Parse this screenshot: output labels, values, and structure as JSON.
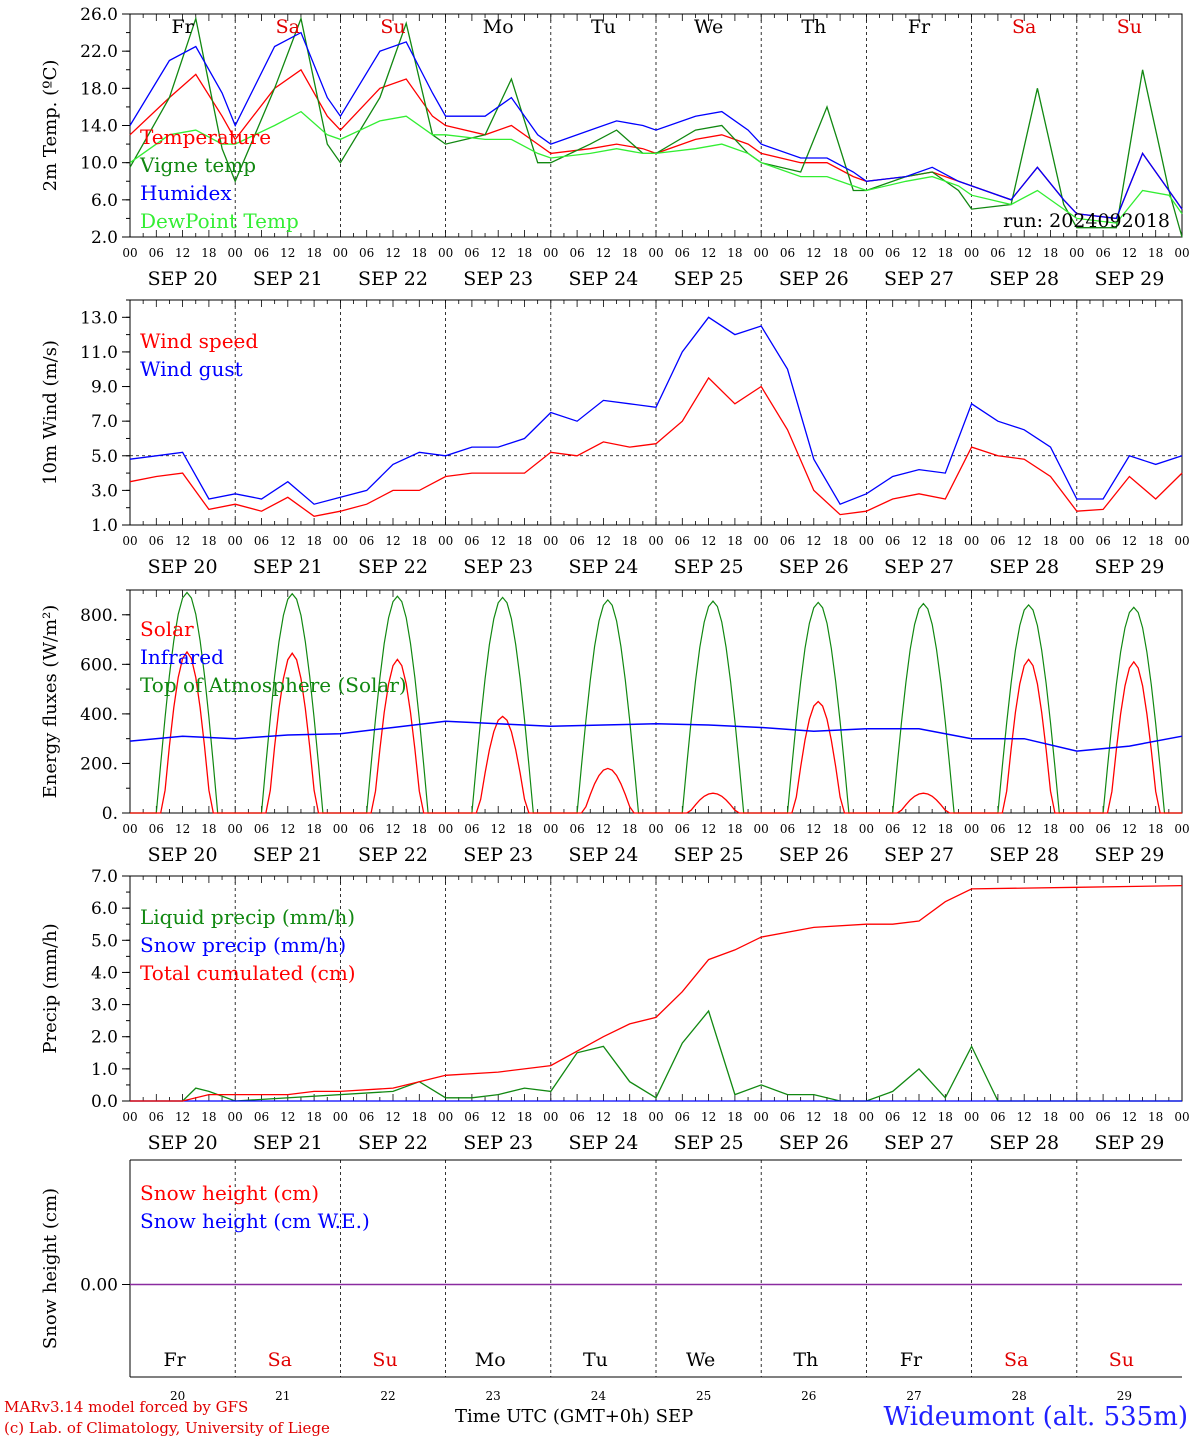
{
  "station": "Wideumont (alt. 535m)",
  "run_label": "run: 2024092018",
  "credits": [
    "MARv3.14 model forced by GFS",
    "(c) Lab. of Climatology, University of Liege"
  ],
  "xaxis_title": "Time UTC (GMT+0h)",
  "month_label": "SEP",
  "day_numbers": [
    "20",
    "21",
    "22",
    "23",
    "24",
    "25",
    "26",
    "27",
    "28",
    "29"
  ],
  "date_labels": [
    "SEP 20",
    "SEP 21",
    "SEP 22",
    "SEP 23",
    "SEP 24",
    "SEP 25",
    "SEP 26",
    "SEP 27",
    "SEP 28",
    "SEP 29"
  ],
  "hour_ticks": [
    "00",
    "06",
    "12",
    "18"
  ],
  "weekdays": [
    "Fr",
    "Sa",
    "Su",
    "Mo",
    "Tu",
    "We",
    "Th",
    "Fr",
    "Sa",
    "Su"
  ],
  "weekend_color": "#e00000",
  "chart_data": [
    {
      "type": "line",
      "ylabel": "2m Temp. (ºC)",
      "ylim": [
        2.0,
        26.0
      ],
      "yticks": [
        "2.0",
        "6.0",
        "10.0",
        "14.0",
        "18.0",
        "22.0",
        "26.0"
      ],
      "x_unit": "hours since SEP 20 00 UTC",
      "x": [
        0,
        9,
        15,
        21,
        24,
        33,
        39,
        45,
        48,
        57,
        63,
        69,
        72,
        81,
        87,
        93,
        96,
        105,
        111,
        117,
        120,
        129,
        135,
        141,
        144,
        153,
        159,
        165,
        168,
        177,
        183,
        189,
        192,
        201,
        207,
        213,
        216,
        225,
        231,
        237,
        240
      ],
      "series": [
        {
          "name": "Temperature",
          "color": "#ff0000",
          "values": [
            13.0,
            17.0,
            19.5,
            15.0,
            12.5,
            18.0,
            20.0,
            15.0,
            13.5,
            18.0,
            19.0,
            15.0,
            14.0,
            13.0,
            14.0,
            12.0,
            11.0,
            11.5,
            12.0,
            11.5,
            11.0,
            12.5,
            13.0,
            12.0,
            11.0,
            10.0,
            10.0,
            8.5,
            8.0,
            8.5,
            9.0,
            8.0,
            7.5,
            6.0,
            9.5,
            6.0,
            4.5,
            4.0,
            11.0,
            7.0,
            5.0
          ]
        },
        {
          "name": "Vigne temp",
          "color": "#118811",
          "values": [
            9.5,
            17.0,
            25.5,
            11.5,
            8.0,
            18.0,
            25.5,
            12.0,
            10.0,
            17.0,
            25.0,
            13.0,
            12.0,
            13.0,
            19.0,
            10.0,
            10.0,
            12.0,
            13.5,
            11.0,
            11.0,
            13.5,
            14.0,
            11.0,
            10.0,
            9.0,
            16.0,
            7.0,
            7.0,
            8.5,
            9.0,
            7.0,
            5.0,
            5.5,
            18.0,
            5.5,
            3.0,
            3.0,
            20.0,
            7.0,
            2.0
          ]
        },
        {
          "name": "Humidex",
          "color": "#0000ff",
          "values": [
            14.0,
            21.0,
            22.5,
            17.5,
            14.0,
            22.5,
            24.0,
            17.0,
            15.0,
            22.0,
            23.0,
            17.5,
            15.0,
            15.0,
            17.0,
            13.0,
            12.0,
            13.5,
            14.5,
            14.0,
            13.5,
            15.0,
            15.5,
            13.5,
            12.0,
            10.5,
            10.5,
            9.0,
            8.0,
            8.5,
            9.5,
            8.0,
            7.5,
            6.0,
            9.5,
            6.0,
            4.5,
            4.0,
            11.0,
            7.0,
            5.0
          ]
        },
        {
          "name": "DewPoint Temp",
          "color": "#33ee33",
          "values": [
            10.0,
            13.0,
            13.5,
            12.0,
            12.0,
            14.0,
            15.5,
            13.0,
            12.5,
            14.5,
            15.0,
            13.0,
            13.0,
            12.5,
            12.5,
            11.0,
            10.5,
            11.0,
            11.5,
            11.0,
            11.0,
            11.5,
            12.0,
            11.0,
            10.0,
            8.5,
            8.5,
            7.5,
            7.0,
            8.0,
            8.5,
            7.5,
            6.5,
            5.5,
            7.0,
            5.0,
            4.0,
            3.5,
            7.0,
            6.5,
            4.5
          ]
        }
      ]
    },
    {
      "type": "line",
      "ylabel": "10m Wind (m/s)",
      "ylim": [
        1.0,
        14.0
      ],
      "yticks": [
        "1.0",
        "3.0",
        "5.0",
        "7.0",
        "9.0",
        "11.0",
        "13.0"
      ],
      "reference_line": 5.0,
      "x": [
        0,
        6,
        12,
        18,
        24,
        30,
        36,
        42,
        48,
        54,
        60,
        66,
        72,
        78,
        84,
        90,
        96,
        102,
        108,
        114,
        120,
        126,
        132,
        138,
        144,
        150,
        156,
        162,
        168,
        174,
        180,
        186,
        192,
        198,
        204,
        210,
        216,
        222,
        228,
        234,
        240
      ],
      "series": [
        {
          "name": "Wind speed",
          "color": "#ff0000",
          "values": [
            3.5,
            3.8,
            4.0,
            1.9,
            2.2,
            1.8,
            2.6,
            1.5,
            1.8,
            2.2,
            3.0,
            3.0,
            3.8,
            4.0,
            4.0,
            4.0,
            5.2,
            5.0,
            5.8,
            5.5,
            5.7,
            7.0,
            9.5,
            8.0,
            9.0,
            6.5,
            3.0,
            1.6,
            1.8,
            2.5,
            2.8,
            2.5,
            5.5,
            5.0,
            4.8,
            3.8,
            1.8,
            1.9,
            3.8,
            2.5,
            4.0
          ]
        },
        {
          "name": "Wind gust",
          "color": "#0000ff",
          "values": [
            4.8,
            5.0,
            5.2,
            2.5,
            2.8,
            2.5,
            3.5,
            2.2,
            2.6,
            3.0,
            4.5,
            5.2,
            5.0,
            5.5,
            5.5,
            6.0,
            7.5,
            7.0,
            8.2,
            8.0,
            7.8,
            11.0,
            13.0,
            12.0,
            12.5,
            10.0,
            4.8,
            2.2,
            2.8,
            3.8,
            4.2,
            4.0,
            8.0,
            7.0,
            6.5,
            5.5,
            2.5,
            2.5,
            5.0,
            4.5,
            5.0
          ]
        }
      ]
    },
    {
      "type": "line",
      "ylabel": "Energy fluxes (W/m²)",
      "ylim": [
        0,
        900
      ],
      "yticks": [
        "0.",
        "200.",
        "400.",
        "600.",
        "800."
      ],
      "series": [
        {
          "name": "Solar",
          "color": "#ff0000",
          "daily_peak": [
            650,
            645,
            620,
            390,
            180,
            80,
            450,
            80,
            620,
            610
          ]
        },
        {
          "name": "Infrared",
          "color": "#0000ff",
          "x": [
            0,
            12,
            24,
            36,
            48,
            60,
            72,
            84,
            96,
            108,
            120,
            132,
            144,
            156,
            168,
            180,
            192,
            204,
            216,
            228,
            240
          ],
          "values": [
            290,
            310,
            300,
            315,
            320,
            345,
            370,
            360,
            350,
            355,
            360,
            355,
            345,
            330,
            340,
            340,
            300,
            300,
            250,
            270,
            310
          ]
        },
        {
          "name": "Top of Atmosphere (Solar)",
          "color": "#118811",
          "daily_peak": [
            890,
            885,
            875,
            870,
            860,
            855,
            850,
            845,
            840,
            830
          ]
        }
      ]
    },
    {
      "type": "line",
      "ylabel": "Precip (mm/h)",
      "ylim": [
        0.0,
        7.0
      ],
      "yticks": [
        "0.0",
        "1.0",
        "2.0",
        "3.0",
        "4.0",
        "5.0",
        "6.0",
        "7.0"
      ],
      "series": [
        {
          "name": "Liquid precip (mm/h)",
          "color": "#118811",
          "x": [
            0,
            12,
            15,
            18,
            24,
            60,
            66,
            72,
            78,
            84,
            90,
            96,
            102,
            108,
            114,
            120,
            126,
            132,
            138,
            144,
            150,
            156,
            162,
            168,
            174,
            180,
            186,
            192,
            198,
            240
          ],
          "values": [
            0,
            0,
            0.4,
            0.3,
            0,
            0.3,
            0.6,
            0.1,
            0.1,
            0.2,
            0.4,
            0.3,
            1.5,
            1.7,
            0.6,
            0.1,
            1.8,
            2.8,
            0.2,
            0.5,
            0.2,
            0.2,
            0,
            0,
            0.3,
            1.0,
            0.1,
            1.7,
            0,
            0
          ]
        },
        {
          "name": "Snow precip (mm/h)",
          "color": "#0000ff",
          "x": [
            0,
            240
          ],
          "values": [
            0,
            0
          ]
        },
        {
          "name": "Total cumulated (cm)",
          "color": "#ff0000",
          "x": [
            0,
            12,
            18,
            24,
            36,
            42,
            48,
            60,
            66,
            72,
            84,
            96,
            108,
            114,
            120,
            126,
            132,
            138,
            144,
            156,
            168,
            174,
            180,
            186,
            192,
            216,
            240
          ],
          "values": [
            0,
            0,
            0.2,
            0.2,
            0.2,
            0.3,
            0.3,
            0.4,
            0.6,
            0.8,
            0.9,
            1.1,
            2.0,
            2.4,
            2.6,
            3.4,
            4.4,
            4.7,
            5.1,
            5.4,
            5.5,
            5.5,
            5.6,
            6.2,
            6.6,
            6.65,
            6.7
          ]
        }
      ]
    },
    {
      "type": "line",
      "ylabel": "Snow height (cm)",
      "yticks": [
        "0.00"
      ],
      "series": [
        {
          "name": "Snow height (cm)",
          "color": "#ff0000",
          "x": [
            0,
            240
          ],
          "values": [
            0,
            0
          ]
        },
        {
          "name": "Snow height (cm W.E.)",
          "color": "#0000ff",
          "x": [
            0,
            240
          ],
          "values": [
            0,
            0
          ]
        }
      ]
    }
  ]
}
